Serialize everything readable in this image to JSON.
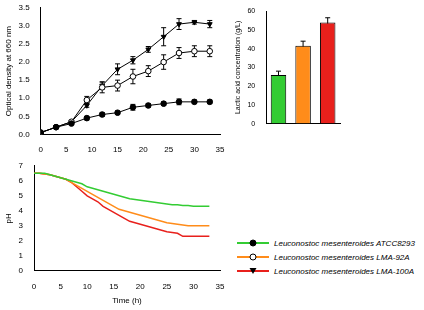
{
  "chart_data": [
    {
      "type": "line",
      "y_label": "Optical density at 660 nm",
      "x": [
        0,
        3,
        6,
        9,
        12,
        15,
        18,
        21,
        24,
        27,
        30,
        33
      ],
      "series": [
        {
          "name": "Leuconostoc mesenteroides ATCC8293",
          "color": "#000000",
          "marker": "circle",
          "values": [
            0.05,
            0.2,
            0.3,
            0.45,
            0.55,
            0.6,
            0.75,
            0.8,
            0.85,
            0.9,
            0.9,
            0.9
          ],
          "errors": [
            0.03,
            0.03,
            0.03,
            0.05,
            0.05,
            0.05,
            0.08,
            0.05,
            0.05,
            0.08,
            0.05,
            0.05
          ]
        },
        {
          "name": "Leuconostoc mesenteroides LMA-92A",
          "color": "#000000",
          "marker": "open_circle",
          "values": [
            0.05,
            0.2,
            0.35,
            0.95,
            1.3,
            1.35,
            1.6,
            1.75,
            2.0,
            2.25,
            2.3,
            2.3
          ],
          "errors": [
            0.03,
            0.03,
            0.03,
            0.1,
            0.15,
            0.15,
            0.2,
            0.15,
            0.2,
            0.15,
            0.15,
            0.15
          ]
        },
        {
          "name": "Leuconostoc mesenteroides LMA-100A",
          "color": "#000000",
          "marker": "triangle_down",
          "values": [
            0.05,
            0.2,
            0.35,
            0.8,
            1.35,
            1.8,
            2.05,
            2.35,
            2.7,
            3.05,
            3.1,
            3.05
          ],
          "errors": [
            0.03,
            0.03,
            0.03,
            0.05,
            0.1,
            0.15,
            0.1,
            0.08,
            0.25,
            0.15,
            0.05,
            0.1
          ]
        }
      ],
      "xlim": [
        0,
        35
      ],
      "xticks": [
        0,
        5,
        10,
        15,
        20,
        25,
        30,
        35
      ],
      "ylim": [
        0,
        3.5
      ],
      "yticks": [
        {
          "value": 0,
          "label": "0.0"
        },
        {
          "value": 0.5,
          "label": "0.5"
        },
        {
          "value": 1,
          "label": "1.0"
        },
        {
          "value": 1.5,
          "label": "1.5"
        },
        {
          "value": 2,
          "label": "2.0"
        },
        {
          "value": 2.5,
          "label": "2.5"
        },
        {
          "value": 3,
          "label": "3.0"
        },
        {
          "value": 3.5,
          "label": "3.5"
        }
      ],
      "grid": false
    },
    {
      "type": "bar",
      "y_label": "Lactic acid concentration (g/L)",
      "categories": [
        null,
        null,
        null
      ],
      "values": [
        26,
        41.5,
        54
      ],
      "errors": [
        2,
        2.5,
        2.5
      ],
      "colors": [
        "#33cc33",
        "#ff8c1a",
        "#e8201c"
      ],
      "ylim": [
        0,
        60
      ],
      "yticks": [
        0,
        10,
        20,
        30,
        40,
        50,
        60
      ],
      "grid": false
    },
    {
      "type": "line",
      "x_label": "Time (h)",
      "y_label": "pH",
      "x": [
        0,
        1,
        2,
        3,
        4,
        5,
        6,
        7,
        8,
        9,
        10,
        11,
        12,
        13,
        14,
        15,
        16,
        17,
        18,
        19,
        20,
        21,
        22,
        23,
        24,
        25,
        26,
        27,
        28,
        29,
        30,
        31,
        32,
        33
      ],
      "series": [
        {
          "name": "Leuconostoc mesenteroides ATCC8293",
          "color": "#33cc33",
          "values": [
            6.5,
            6.5,
            6.5,
            6.4,
            6.3,
            6.2,
            6.1,
            6.0,
            5.9,
            5.8,
            5.6,
            5.5,
            5.4,
            5.3,
            5.2,
            5.1,
            5.0,
            4.9,
            4.8,
            4.75,
            4.7,
            4.65,
            4.6,
            4.55,
            4.5,
            4.45,
            4.4,
            4.4,
            4.35,
            4.35,
            4.3,
            4.3,
            4.3,
            4.3
          ]
        },
        {
          "name": "Leuconostoc mesenteroides LMA-92A",
          "color": "#ff8c1a",
          "values": [
            6.5,
            6.5,
            6.45,
            6.4,
            6.3,
            6.2,
            6.1,
            5.9,
            5.7,
            5.5,
            5.3,
            5.1,
            4.9,
            4.7,
            4.5,
            4.3,
            4.1,
            4.0,
            3.9,
            3.8,
            3.7,
            3.6,
            3.5,
            3.4,
            3.3,
            3.2,
            3.15,
            3.1,
            3.05,
            3.0,
            3.0,
            3.0,
            3.0,
            3.0
          ]
        },
        {
          "name": "Leuconostoc mesenteroides LMA-100A",
          "color": "#e8201c",
          "values": [
            6.5,
            6.5,
            6.45,
            6.4,
            6.3,
            6.2,
            6.1,
            5.9,
            5.6,
            5.3,
            5.0,
            4.8,
            4.6,
            4.3,
            4.1,
            3.9,
            3.7,
            3.5,
            3.3,
            3.2,
            3.1,
            3.0,
            2.9,
            2.8,
            2.7,
            2.6,
            2.55,
            2.5,
            2.3,
            2.3,
            2.3,
            2.3,
            2.3,
            2.3
          ]
        }
      ],
      "xlim": [
        0,
        35
      ],
      "xticks": [
        0,
        5,
        10,
        15,
        20,
        25,
        30,
        35
      ],
      "ylim": [
        0,
        7
      ],
      "yticks": [
        0,
        1,
        2,
        3,
        4,
        5,
        6,
        7
      ],
      "grid": false,
      "legend": "right"
    }
  ]
}
